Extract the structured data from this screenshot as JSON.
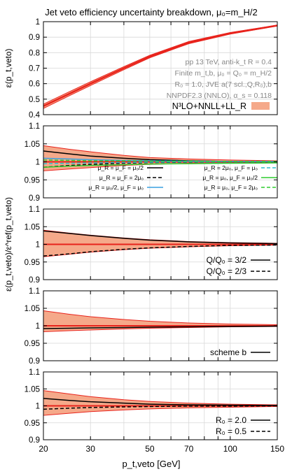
{
  "title": "Jet veto efficiency uncertainty breakdown, μ₀=m_H/2",
  "xlabel": "p_t,veto [GeV]",
  "xticks": [
    "20",
    "30",
    "50",
    "70",
    "100",
    "150"
  ],
  "colors": {
    "band": "#f5a98a",
    "band_edge": "#e8231c",
    "central": "#e8231c",
    "ref": "#000000",
    "blue": "#3aa0e0",
    "green": "#2ecc2e",
    "teal": "#2bbfcf"
  },
  "chart_data": [
    {
      "type": "area",
      "ylabel": "ε(p_t,veto)",
      "ylim": [
        0.4,
        1.0
      ],
      "yticks": [
        "0.4",
        "0.5",
        "0.6",
        "0.7",
        "0.8",
        "0.9",
        "1"
      ],
      "x": [
        20,
        25,
        30,
        40,
        50,
        70,
        100,
        150
      ],
      "central": [
        0.455,
        0.535,
        0.6,
        0.7,
        0.775,
        0.865,
        0.925,
        0.975
      ],
      "band_lo": [
        0.44,
        0.522,
        0.588,
        0.69,
        0.767,
        0.858,
        0.92,
        0.972
      ],
      "band_hi": [
        0.468,
        0.548,
        0.612,
        0.71,
        0.783,
        0.872,
        0.93,
        0.978
      ],
      "info": [
        "pp 13 TeV, anti-k_t R = 0.4",
        "Finite m_t,b, μ₀ = Q₀ = m_H/2",
        "R₀ = 1.0, JVE a(7 scl.,Q,R₀),b",
        "NNPDF2.3 (NNLO), α_s = 0.118"
      ],
      "legend": "N³LO+NNLL+LL_R"
    },
    {
      "type": "line",
      "ylabel": "",
      "ylim": [
        0.9,
        1.1
      ],
      "yticks": [
        "0.9",
        "0.95",
        "1",
        "1.05",
        "1.1"
      ],
      "x": [
        20,
        25,
        30,
        40,
        50,
        70,
        100,
        150
      ],
      "band_lo": [
        0.975,
        0.98,
        0.984,
        0.99,
        0.993,
        0.996,
        0.997,
        0.998
      ],
      "band_hi": [
        1.045,
        1.035,
        1.028,
        1.018,
        1.012,
        1.008,
        1.005,
        1.003
      ],
      "series": [
        {
          "name": "μ_R = μ_F = μ₀/2",
          "style": "black-solid",
          "values": [
            1.03,
            1.022,
            1.016,
            1.01,
            1.006,
            1.003,
            1.001,
            1.0
          ]
        },
        {
          "name": "μ_R = μ_F = 2μ₀",
          "style": "black-dash",
          "values": [
            0.985,
            0.99,
            0.993,
            0.996,
            0.998,
            0.999,
            1.0,
            1.0
          ]
        },
        {
          "name": "μ_R = μ₀/2, μ_F = μ₀",
          "style": "blue-solid",
          "values": [
            1.01,
            1.008,
            1.006,
            1.004,
            1.003,
            1.002,
            1.001,
            1.001
          ]
        },
        {
          "name": "μ_R = 2μ₀, μ_F = μ₀",
          "style": "teal-dash",
          "values": [
            0.995,
            0.996,
            0.997,
            0.998,
            0.999,
            1.0,
            1.0,
            1.0
          ]
        },
        {
          "name": "μ_R = μ₀, μ_F = μ₀/2",
          "style": "green-solid",
          "values": [
            0.985,
            0.988,
            0.99,
            0.992,
            0.994,
            0.995,
            0.996,
            0.997
          ]
        },
        {
          "name": "μ_R = μ₀, μ_F = 2μ₀",
          "style": "green-dash",
          "values": [
            1.005,
            1.004,
            1.003,
            1.003,
            1.002,
            1.002,
            1.001,
            1.001
          ]
        }
      ]
    },
    {
      "type": "line",
      "ylabel": "ε(p_t,veto)/ε^ref(p_t,veto)",
      "ylim": [
        0.9,
        1.1
      ],
      "yticks": [
        "0.9",
        "0.95",
        "1",
        "1.05",
        "1.1"
      ],
      "x": [
        20,
        25,
        30,
        40,
        50,
        70,
        100,
        150
      ],
      "band_lo": [
        0.965,
        0.972,
        0.978,
        0.985,
        0.989,
        0.993,
        0.996,
        0.998
      ],
      "band_hi": [
        1.04,
        1.032,
        1.026,
        1.018,
        1.013,
        1.008,
        1.005,
        1.003
      ],
      "series": [
        {
          "name": "Q/Q₀ = 3/2",
          "style": "black-solid",
          "values": [
            1.038,
            1.031,
            1.025,
            1.017,
            1.012,
            1.007,
            1.004,
            1.002
          ]
        },
        {
          "name": "Q/Q₀ = 2/3",
          "style": "black-dash",
          "values": [
            0.967,
            0.973,
            0.979,
            0.986,
            0.99,
            0.994,
            0.997,
            0.998
          ]
        }
      ]
    },
    {
      "type": "line",
      "ylabel": "",
      "ylim": [
        0.9,
        1.1
      ],
      "yticks": [
        "0.9",
        "0.95",
        "1",
        "1.05",
        "1.1"
      ],
      "x": [
        20,
        25,
        30,
        40,
        50,
        70,
        100,
        150
      ],
      "band_lo": [
        0.983,
        0.986,
        0.988,
        0.991,
        0.993,
        0.995,
        0.997,
        0.998
      ],
      "band_hi": [
        1.043,
        1.033,
        1.026,
        1.018,
        1.013,
        1.008,
        1.005,
        1.003
      ],
      "series": [
        {
          "name": "scheme b",
          "style": "black-solid",
          "values": [
            0.992,
            0.993,
            0.994,
            0.995,
            0.996,
            0.997,
            0.998,
            0.999
          ]
        }
      ]
    },
    {
      "type": "line",
      "ylabel": "",
      "ylim": [
        0.9,
        1.1
      ],
      "yticks": [
        "0.9",
        "0.95",
        "1",
        "1.05",
        "1.1"
      ],
      "x": [
        20,
        25,
        30,
        40,
        50,
        70,
        100,
        150
      ],
      "band_lo": [
        0.972,
        0.978,
        0.983,
        0.988,
        0.991,
        0.994,
        0.996,
        0.998
      ],
      "band_hi": [
        1.045,
        1.035,
        1.027,
        1.018,
        1.013,
        1.008,
        1.005,
        1.003
      ],
      "series": [
        {
          "name": "R₀ = 2.0",
          "style": "black-solid",
          "values": [
            1.022,
            1.016,
            1.012,
            1.008,
            1.005,
            1.003,
            1.002,
            1.001
          ]
        },
        {
          "name": "R₀ = 0.5",
          "style": "black-dash",
          "values": [
            0.99,
            0.993,
            0.995,
            0.997,
            0.998,
            0.999,
            0.999,
            1.0
          ]
        }
      ]
    }
  ]
}
